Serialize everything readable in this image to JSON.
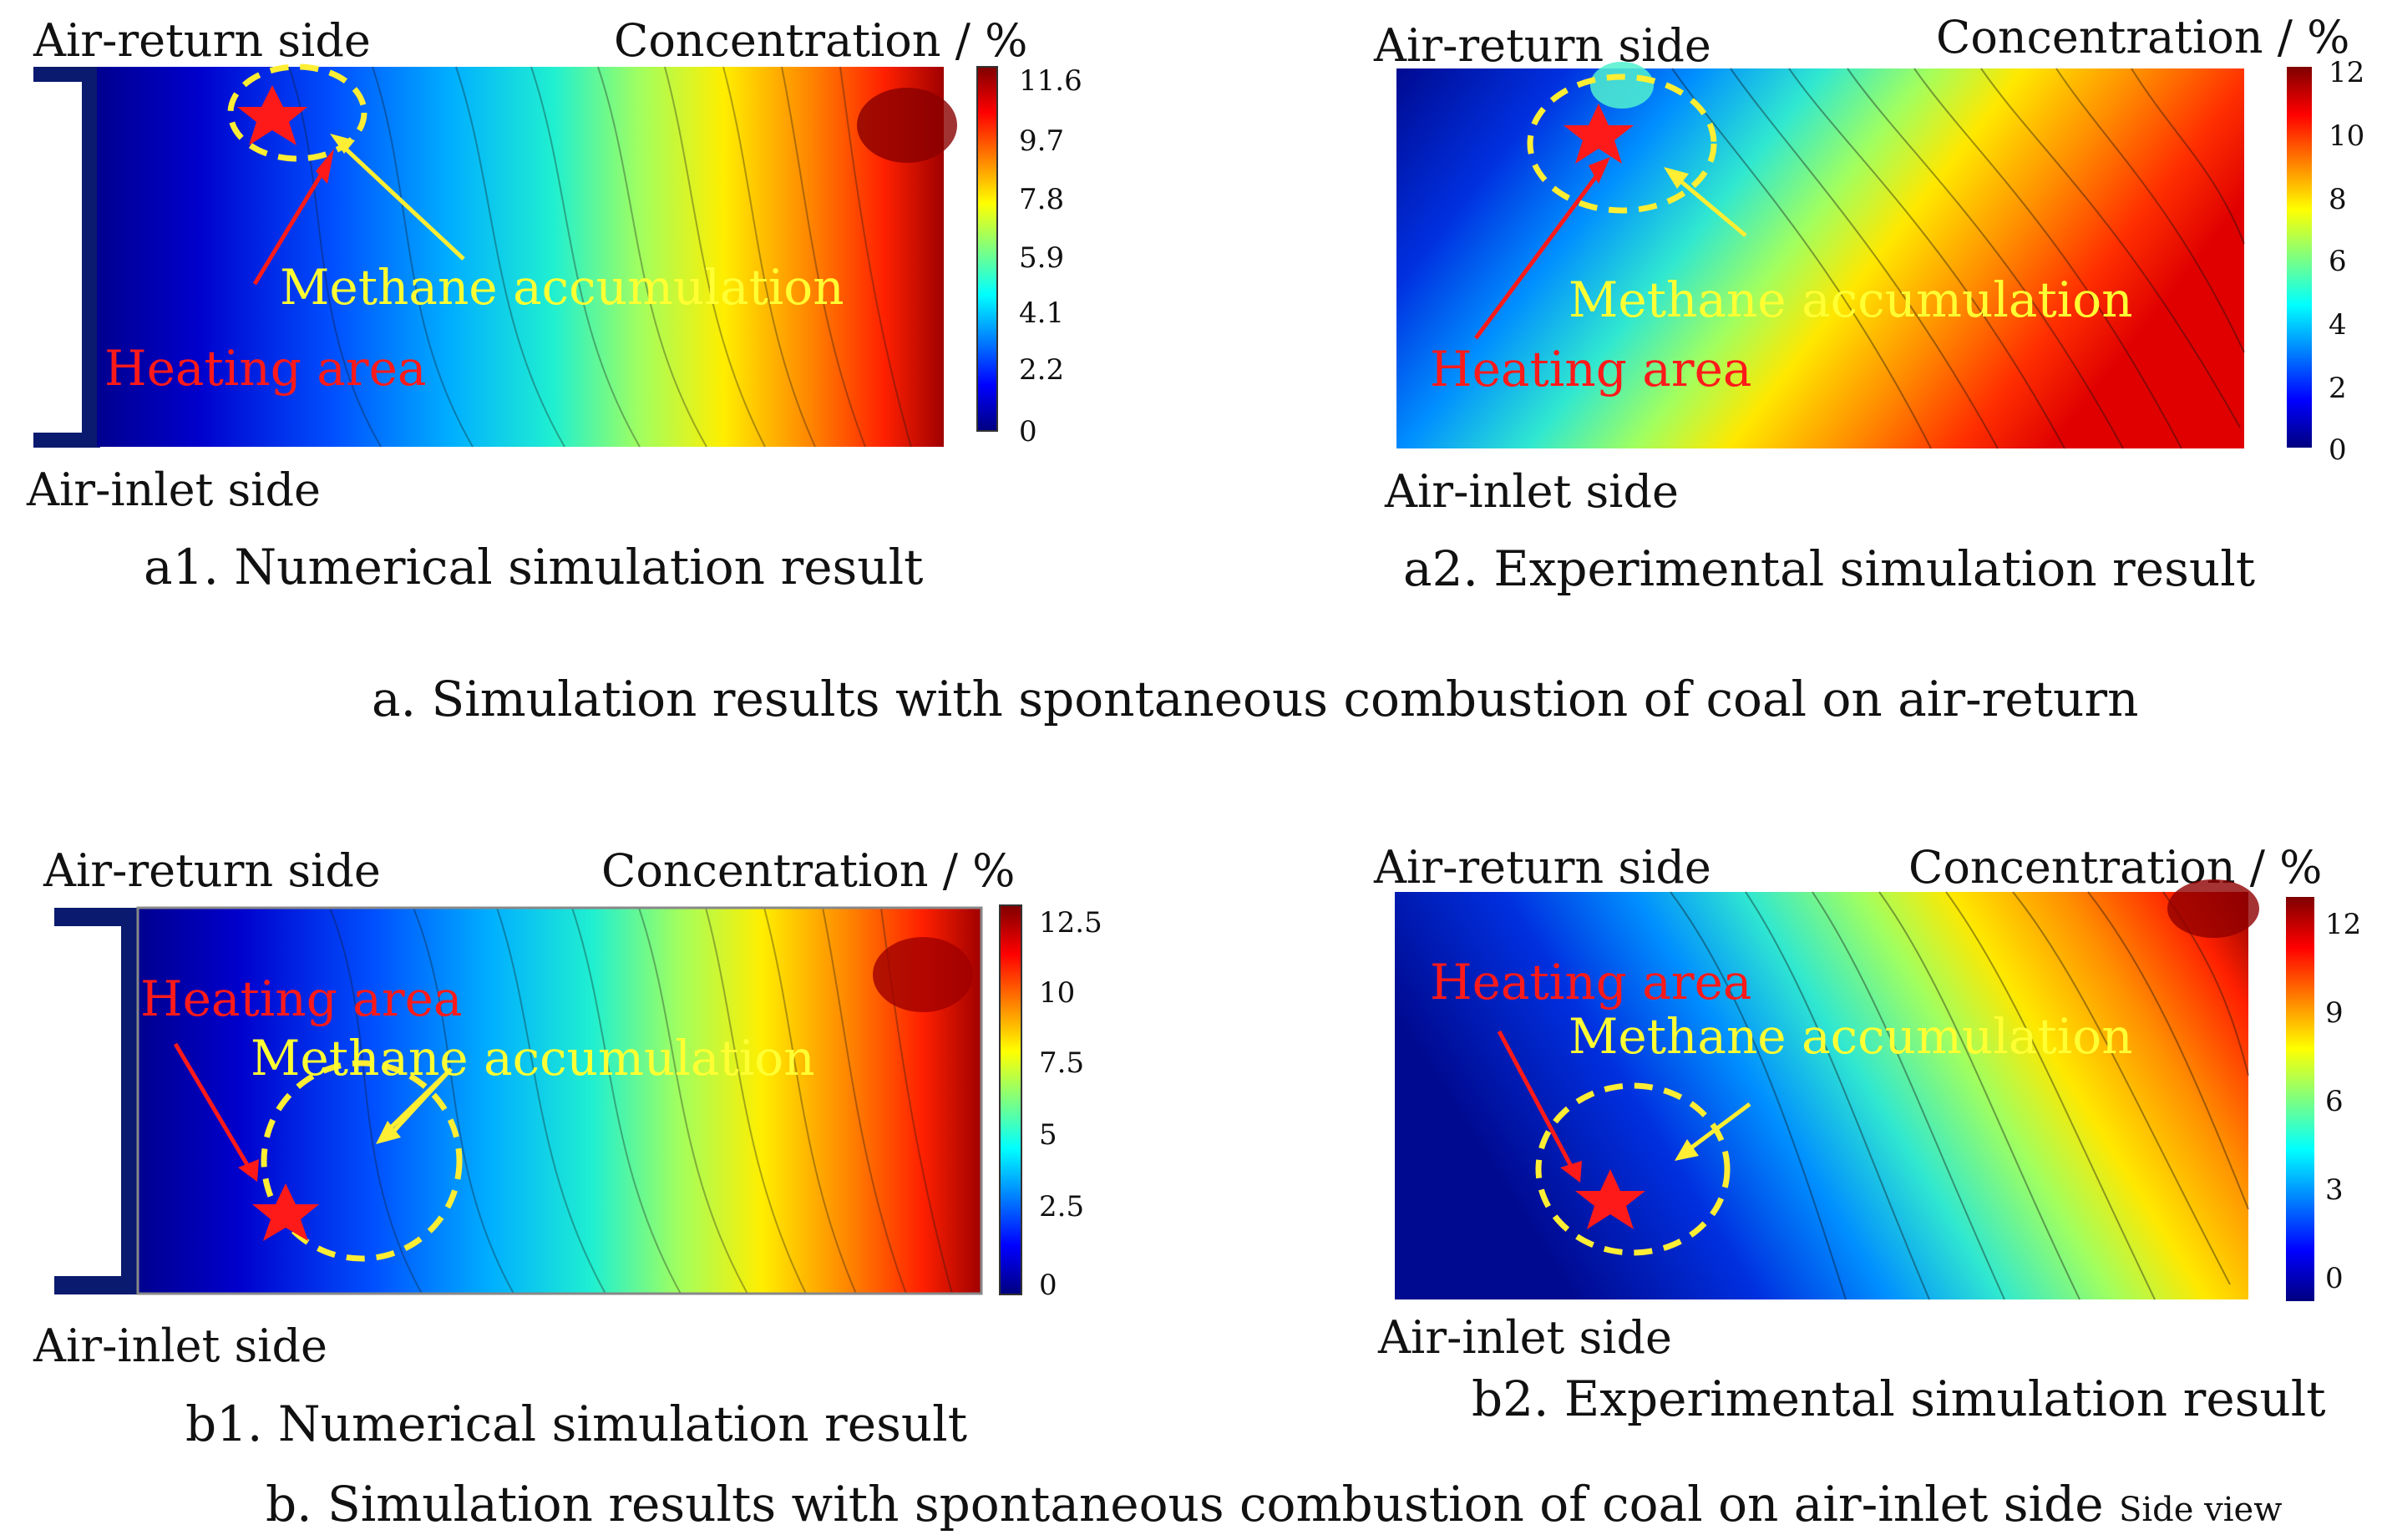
{
  "panels": {
    "a1": {
      "air_return": "Air-return side",
      "air_inlet": "Air-inlet side",
      "conc_label": "Concentration / %",
      "heating": "Heating area",
      "methane": "Methane accumulation",
      "caption": "a1. Numerical simulation result",
      "colorbar_ticks": [
        "11.6",
        "9.7",
        "7.8",
        "5.9",
        "4.1",
        "2.2",
        "0"
      ]
    },
    "a2": {
      "air_return": "Air-return side",
      "air_inlet": "Air-inlet side",
      "conc_label": "Concentration / %",
      "heating": "Heating area",
      "methane": "Methane accumulation",
      "caption": "a2. Experimental simulation result",
      "colorbar_ticks": [
        "12",
        "10",
        "8",
        "6",
        "4",
        "2",
        "0"
      ]
    },
    "b1": {
      "air_return": "Air-return side",
      "air_inlet": "Air-inlet side",
      "conc_label": "Concentration / %",
      "heating": "Heating area",
      "methane": "Methane accumulation",
      "caption": "b1. Numerical simulation result",
      "colorbar_ticks": [
        "12.5",
        "10",
        "7.5",
        "5",
        "2.5",
        "0"
      ]
    },
    "b2": {
      "air_return": "Air-return side",
      "air_inlet": "Air-inlet side",
      "conc_label": "Concentration / %",
      "heating": "Heating area",
      "methane": "Methane accumulation",
      "caption": "b2. Experimental simulation result",
      "colorbar_ticks": [
        "12",
        "9",
        "6",
        "3",
        "0"
      ]
    }
  },
  "group_captions": {
    "a": "a. Simulation results with spontaneous combustion of coal on air-return",
    "b": "b. Simulation results with spontaneous combustion of coal on air-inlet side",
    "b_suffix": "Side view"
  },
  "colors": {
    "heating_marker": "#ff1a1a",
    "accumulation_ring": "#ffee33",
    "colormap": [
      "#00007f",
      "#0000ff",
      "#007fff",
      "#00ffff",
      "#7fff7f",
      "#ffff00",
      "#ff7f00",
      "#ff0000",
      "#7f0000"
    ]
  }
}
